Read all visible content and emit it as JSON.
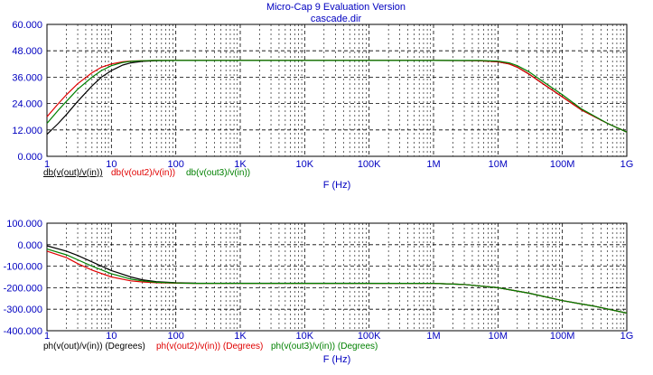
{
  "window": {
    "title": "Micro-Cap 9 Evaluation Version",
    "subtitle": "cascade.dir"
  },
  "colors": {
    "background": "#ffffff",
    "text_blue": "#0000c0",
    "grid": "#000000",
    "series_black": "#000000",
    "series_red": "#e00000",
    "series_green": "#008000"
  },
  "chart_data": [
    {
      "type": "line",
      "x_scale": "log",
      "xlim": [
        1,
        1000000000
      ],
      "x_ticks": [
        1,
        10,
        100,
        1000,
        10000,
        100000,
        1000000,
        10000000,
        100000000,
        1000000000
      ],
      "x_tick_labels": [
        "1",
        "10",
        "100",
        "1K",
        "10K",
        "100K",
        "1M",
        "10M",
        "100M",
        "1G"
      ],
      "xlabel": "F (Hz)",
      "ylim": [
        0,
        60
      ],
      "y_ticks": [
        0,
        12,
        24,
        36,
        48,
        60
      ],
      "y_tick_labels": [
        "0.000",
        "12.000",
        "24.000",
        "36.000",
        "48.000",
        "60.000"
      ],
      "grid": true,
      "series": [
        {
          "name": "db(v(out)/v(in))",
          "color": "#000000",
          "x": [
            1,
            1.5,
            2,
            3,
            5,
            7,
            10,
            15,
            20,
            30,
            50,
            100,
            1000000,
            5000000,
            10000000,
            15000000,
            20000000,
            30000000,
            50000000,
            100000000,
            200000000,
            500000000,
            1000000000
          ],
          "values": [
            10,
            15,
            19,
            25,
            32,
            36,
            39,
            41.5,
            42.5,
            43.2,
            43.5,
            43.6,
            43.6,
            43.5,
            43,
            42,
            40.5,
            37.5,
            33,
            27,
            21,
            15,
            11
          ]
        },
        {
          "name": "db(v(out2)/v(in))",
          "color": "#e00000",
          "x": [
            1,
            1.5,
            2,
            3,
            5,
            7,
            10,
            15,
            20,
            30,
            50,
            100,
            1000000,
            5000000,
            10000000,
            15000000,
            20000000,
            30000000,
            50000000,
            100000000,
            200000000,
            500000000,
            1000000000
          ],
          "values": [
            18,
            24,
            28,
            33,
            38,
            40.5,
            42,
            43,
            43.3,
            43.5,
            43.6,
            43.6,
            43.6,
            43.5,
            43,
            42,
            40.5,
            37.5,
            33,
            27,
            21,
            15,
            11
          ]
        },
        {
          "name": "db(v(out3)/v(in))",
          "color": "#008000",
          "x": [
            1,
            1.5,
            2,
            3,
            5,
            7,
            10,
            15,
            20,
            30,
            50,
            100,
            1000000,
            5000000,
            10000000,
            15000000,
            20000000,
            30000000,
            50000000,
            100000000,
            200000000,
            500000000,
            1000000000
          ],
          "values": [
            15,
            21,
            25,
            30.5,
            36,
            39,
            41.2,
            42.7,
            43.2,
            43.5,
            43.6,
            43.6,
            43.6,
            43.6,
            43.3,
            42.5,
            41.2,
            38.5,
            34,
            28,
            21.5,
            15,
            11
          ]
        }
      ]
    },
    {
      "type": "line",
      "x_scale": "log",
      "xlim": [
        1,
        1000000000
      ],
      "x_ticks": [
        1,
        10,
        100,
        1000,
        10000,
        100000,
        1000000,
        10000000,
        100000000,
        1000000000
      ],
      "x_tick_labels": [
        "1",
        "10",
        "100",
        "1K",
        "10K",
        "100K",
        "1M",
        "10M",
        "100M",
        "1G"
      ],
      "xlabel": "F (Hz)",
      "ylim": [
        -400,
        100
      ],
      "y_ticks": [
        -400,
        -300,
        -200,
        -100,
        0,
        100
      ],
      "y_tick_labels": [
        "-400.000",
        "-300.000",
        "-200.000",
        "-100.000",
        "0.000",
        "100.000"
      ],
      "grid": true,
      "series": [
        {
          "name": "ph(v(out)/v(in)) (Degrees)",
          "color": "#000000",
          "x": [
            1,
            2,
            3,
            5,
            10,
            20,
            30,
            50,
            100,
            200,
            1000000,
            3000000,
            10000000,
            30000000,
            100000000,
            300000000,
            1000000000
          ],
          "values": [
            -5,
            -30,
            -50,
            -80,
            -120,
            -150,
            -163,
            -172,
            -177,
            -179,
            -180,
            -185,
            -200,
            -225,
            -260,
            -285,
            -318
          ]
        },
        {
          "name": "ph(v(out2)/v(in)) (Degrees)",
          "color": "#e00000",
          "x": [
            1,
            2,
            3,
            5,
            10,
            20,
            30,
            50,
            100,
            200,
            1000000,
            3000000,
            10000000,
            30000000,
            100000000,
            300000000,
            1000000000
          ],
          "values": [
            -30,
            -60,
            -88,
            -118,
            -150,
            -168,
            -173,
            -177,
            -179,
            -180,
            -180,
            -185,
            -200,
            -225,
            -260,
            -285,
            -318
          ]
        },
        {
          "name": "ph(v(out3)/v(in)) (Degrees)",
          "color": "#008000",
          "x": [
            1,
            2,
            3,
            5,
            10,
            20,
            30,
            50,
            100,
            200,
            1000000,
            3000000,
            10000000,
            30000000,
            100000000,
            300000000,
            1000000000
          ],
          "values": [
            -20,
            -47,
            -70,
            -100,
            -135,
            -160,
            -168,
            -175,
            -178,
            -180,
            -180,
            -185,
            -200,
            -225,
            -260,
            -285,
            -318
          ]
        }
      ]
    }
  ]
}
